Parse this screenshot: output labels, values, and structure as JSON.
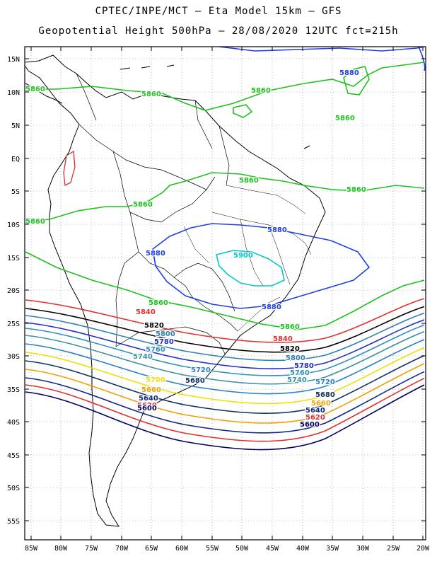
{
  "header": {
    "line1": "CPTEC/INPE/MCT –  Eta Model 15km – GFS",
    "line2": "Geopotential Height 500hPa – 28/08/2020 12UTC fct=215h"
  },
  "axes": {
    "lat_labels": [
      "15N",
      "10N",
      "5N",
      "EQ",
      "5S",
      "10S",
      "15S",
      "20S",
      "25S",
      "30S",
      "35S",
      "40S",
      "45S",
      "50S",
      "55S"
    ],
    "lon_labels": [
      "85W",
      "80W",
      "75W",
      "70W",
      "65W",
      "60W",
      "55W",
      "50W",
      "45W",
      "40W",
      "35W",
      "30W",
      "25W",
      "20W"
    ]
  },
  "contours": [
    {
      "value": "5900",
      "color": "#00c8c8"
    },
    {
      "value": "5880",
      "color": "#2040e0"
    },
    {
      "value": "5860",
      "color": "#20c020"
    },
    {
      "value": "5840",
      "color": "#e03030"
    },
    {
      "value": "5820",
      "color": "#000000"
    },
    {
      "value": "5800",
      "color": "#3080b0"
    },
    {
      "value": "5780",
      "color": "#2030c0"
    },
    {
      "value": "5760",
      "color": "#3090c0"
    },
    {
      "value": "5740",
      "color": "#4090a0"
    },
    {
      "value": "5720",
      "color": "#2a80c8"
    },
    {
      "value": "5700",
      "color": "#f0e000"
    },
    {
      "value": "5680",
      "color": "#103060"
    },
    {
      "value": "5660",
      "color": "#f0a000"
    },
    {
      "value": "5640",
      "color": "#102880"
    },
    {
      "value": "5620",
      "color": "#e03030"
    },
    {
      "value": "5600",
      "color": "#000060"
    }
  ]
}
